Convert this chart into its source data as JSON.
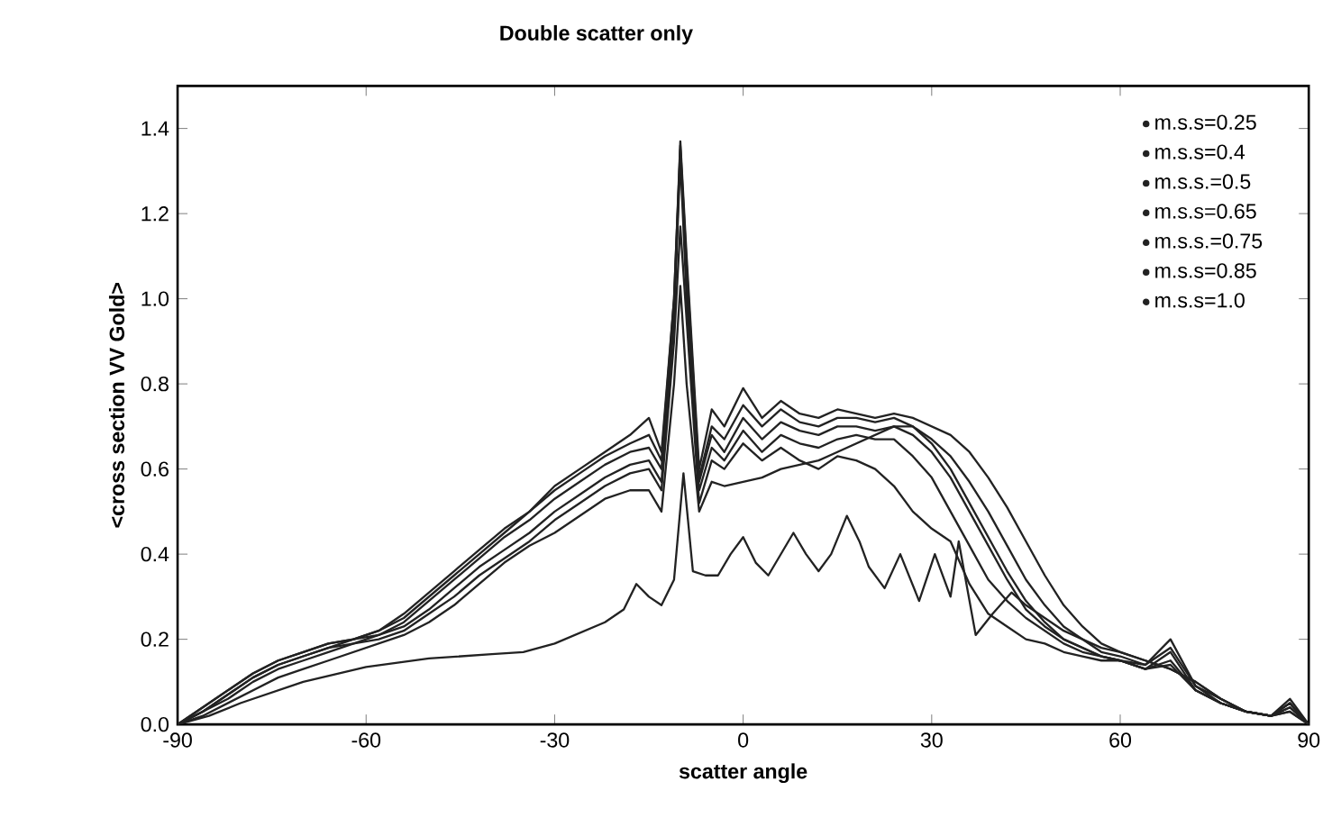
{
  "chart_data": {
    "type": "line",
    "title": "Double scatter only",
    "xlabel": "scatter angle",
    "ylabel": "<cross section VV Gold>",
    "xlim": [
      -90,
      90
    ],
    "xticks": [
      -90,
      -60,
      -30,
      0,
      30,
      60,
      90
    ],
    "ylim": [
      0,
      1.5
    ],
    "yticks": [
      {
        "value": 0,
        "label": "0.0"
      },
      0.2,
      0.4,
      0.6,
      0.8,
      {
        "value": 1,
        "label": "1.0"
      },
      1.2,
      1.4
    ],
    "grid": false,
    "legend": "top right",
    "x": [
      -90,
      -86,
      -82,
      -78,
      -74,
      -70,
      -66,
      -62,
      -58,
      -54,
      -50,
      -46,
      -42,
      -38,
      -34,
      -30,
      -26,
      -22,
      -18,
      -15,
      -13,
      -11,
      -10,
      -9,
      -7,
      -5,
      -3,
      0,
      3,
      6,
      9,
      12,
      15,
      18,
      21,
      24,
      27,
      30,
      33,
      36,
      39,
      42,
      45,
      48,
      51,
      54,
      57,
      60,
      64,
      68,
      72,
      76,
      80,
      84,
      87,
      90
    ],
    "series": [
      {
        "name": "m.s.s=0.25",
        "color": "#222222",
        "x": [
          -90,
          -85,
          -80,
          -70,
          -60,
          -50,
          -40,
          -35,
          -30,
          -26,
          -22,
          -19,
          -17,
          -15,
          -13,
          -11,
          -9.5,
          -8,
          -6,
          -4,
          -2,
          0,
          2,
          4,
          6,
          8,
          10,
          12,
          14,
          16.5,
          18.5,
          20,
          22.5,
          25,
          28,
          30.5,
          33,
          34.3,
          37,
          39.7,
          42.7,
          45,
          48,
          51,
          54,
          57,
          60,
          64,
          68,
          72,
          76,
          80,
          84,
          87,
          90
        ],
        "values": [
          0,
          0.02,
          0.05,
          0.1,
          0.135,
          0.155,
          0.165,
          0.17,
          0.19,
          0.215,
          0.24,
          0.27,
          0.33,
          0.3,
          0.28,
          0.34,
          0.59,
          0.36,
          0.35,
          0.35,
          0.4,
          0.44,
          0.38,
          0.35,
          0.4,
          0.45,
          0.4,
          0.36,
          0.4,
          0.49,
          0.43,
          0.37,
          0.32,
          0.4,
          0.29,
          0.4,
          0.3,
          0.43,
          0.21,
          0.26,
          0.31,
          0.28,
          0.25,
          0.22,
          0.2,
          0.18,
          0.17,
          0.15,
          0.13,
          0.1,
          0.06,
          0.03,
          0.02,
          0.03,
          0
        ]
      },
      {
        "name": "m.s.s=0.4",
        "color": "#222222",
        "values": [
          0,
          0.02,
          0.05,
          0.08,
          0.11,
          0.13,
          0.15,
          0.17,
          0.19,
          0.21,
          0.24,
          0.28,
          0.33,
          0.38,
          0.42,
          0.45,
          0.49,
          0.53,
          0.55,
          0.55,
          0.5,
          0.8,
          1.03,
          0.8,
          0.5,
          0.57,
          0.56,
          0.57,
          0.58,
          0.6,
          0.61,
          0.62,
          0.64,
          0.66,
          0.68,
          0.7,
          0.7,
          0.66,
          0.6,
          0.52,
          0.44,
          0.36,
          0.29,
          0.24,
          0.2,
          0.18,
          0.16,
          0.15,
          0.13,
          0.14,
          0.08,
          0.05,
          0.03,
          0.02,
          0.04,
          0
        ]
      },
      {
        "name": "m.s.s.=0.5",
        "color": "#222222",
        "values": [
          0,
          0.03,
          0.06,
          0.1,
          0.13,
          0.15,
          0.17,
          0.19,
          0.2,
          0.22,
          0.26,
          0.3,
          0.35,
          0.39,
          0.43,
          0.48,
          0.52,
          0.56,
          0.59,
          0.6,
          0.55,
          0.9,
          1.17,
          0.95,
          0.52,
          0.62,
          0.6,
          0.66,
          0.62,
          0.65,
          0.62,
          0.6,
          0.63,
          0.62,
          0.6,
          0.56,
          0.5,
          0.46,
          0.43,
          0.33,
          0.26,
          0.23,
          0.2,
          0.19,
          0.17,
          0.16,
          0.15,
          0.15,
          0.13,
          0.15,
          0.08,
          0.05,
          0.03,
          0.02,
          0.05,
          0
        ]
      },
      {
        "name": "m.s.s=0.65",
        "color": "#222222",
        "values": [
          0,
          0.03,
          0.07,
          0.11,
          0.14,
          0.16,
          0.18,
          0.19,
          0.21,
          0.23,
          0.27,
          0.32,
          0.37,
          0.41,
          0.45,
          0.5,
          0.54,
          0.58,
          0.61,
          0.62,
          0.57,
          0.95,
          1.33,
          1.0,
          0.55,
          0.65,
          0.62,
          0.69,
          0.64,
          0.68,
          0.66,
          0.65,
          0.67,
          0.68,
          0.67,
          0.67,
          0.63,
          0.58,
          0.5,
          0.42,
          0.34,
          0.29,
          0.25,
          0.22,
          0.19,
          0.17,
          0.16,
          0.15,
          0.13,
          0.17,
          0.08,
          0.05,
          0.03,
          0.02,
          0.06,
          0
        ]
      },
      {
        "name": "m.s.s.=0.75",
        "color": "#222222",
        "values": [
          0,
          0.03,
          0.07,
          0.11,
          0.14,
          0.16,
          0.18,
          0.2,
          0.21,
          0.24,
          0.29,
          0.34,
          0.39,
          0.44,
          0.48,
          0.53,
          0.57,
          0.61,
          0.64,
          0.65,
          0.6,
          0.98,
          1.35,
          1.05,
          0.57,
          0.68,
          0.64,
          0.72,
          0.67,
          0.71,
          0.69,
          0.68,
          0.7,
          0.7,
          0.69,
          0.7,
          0.68,
          0.64,
          0.58,
          0.5,
          0.42,
          0.34,
          0.27,
          0.23,
          0.2,
          0.18,
          0.16,
          0.15,
          0.14,
          0.2,
          0.09,
          0.05,
          0.03,
          0.02,
          0.05,
          0
        ]
      },
      {
        "name": "m.s.s=0.85",
        "color": "#222222",
        "values": [
          0,
          0.04,
          0.08,
          0.12,
          0.15,
          0.17,
          0.19,
          0.2,
          0.22,
          0.25,
          0.3,
          0.35,
          0.4,
          0.45,
          0.5,
          0.55,
          0.59,
          0.63,
          0.66,
          0.68,
          0.62,
          1.0,
          1.36,
          1.08,
          0.58,
          0.7,
          0.67,
          0.75,
          0.7,
          0.74,
          0.71,
          0.7,
          0.72,
          0.72,
          0.71,
          0.72,
          0.7,
          0.67,
          0.63,
          0.57,
          0.5,
          0.42,
          0.34,
          0.28,
          0.23,
          0.2,
          0.17,
          0.16,
          0.14,
          0.18,
          0.09,
          0.06,
          0.03,
          0.02,
          0.04,
          0
        ]
      },
      {
        "name": "m.s.s=1.0",
        "color": "#222222",
        "values": [
          0,
          0.04,
          0.08,
          0.12,
          0.15,
          0.17,
          0.19,
          0.2,
          0.22,
          0.26,
          0.31,
          0.36,
          0.41,
          0.46,
          0.5,
          0.56,
          0.6,
          0.64,
          0.68,
          0.72,
          0.64,
          1.0,
          1.37,
          1.1,
          0.6,
          0.74,
          0.7,
          0.79,
          0.72,
          0.76,
          0.73,
          0.72,
          0.74,
          0.73,
          0.72,
          0.73,
          0.72,
          0.7,
          0.68,
          0.64,
          0.58,
          0.51,
          0.43,
          0.35,
          0.28,
          0.23,
          0.19,
          0.17,
          0.15,
          0.13,
          0.1,
          0.06,
          0.03,
          0.02,
          0.03,
          0
        ]
      }
    ]
  }
}
